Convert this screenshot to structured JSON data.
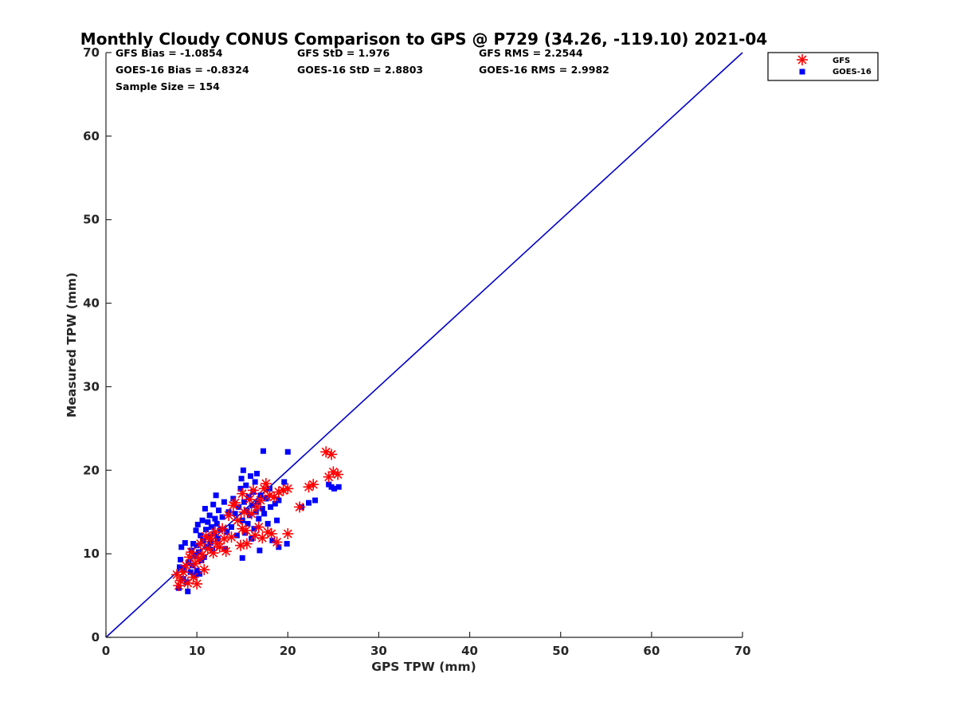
{
  "chart_data": {
    "type": "scatter",
    "title": "Monthly Cloudy CONUS Comparison to GPS @ P729 (34.26, -119.10) 2021-04",
    "xlabel": "GPS TPW (mm)",
    "ylabel": "Measured TPW (mm)",
    "xlim": [
      0,
      70
    ],
    "ylim": [
      0,
      70
    ],
    "xticks": [
      0,
      10,
      20,
      30,
      40,
      50,
      60,
      70
    ],
    "yticks": [
      0,
      10,
      20,
      30,
      40,
      50,
      60,
      70
    ],
    "grid": false,
    "legend_position": "outside-top-right",
    "stats": [
      [
        "GFS Bias = -1.0854",
        "GFS StD = 1.976",
        "GFS RMS = 2.2544"
      ],
      [
        "GOES-16 Bias = -0.8324",
        "GOES-16 StD = 2.8803",
        "GOES-16 RMS = 2.9982"
      ],
      [
        "Sample Size = 154"
      ]
    ],
    "reference_line": {
      "name": "1:1",
      "x": [
        0,
        70
      ],
      "y": [
        0,
        70
      ],
      "color": "#0000cc"
    },
    "series": [
      {
        "name": "GFS",
        "marker": "asterisk",
        "color": "#ff0000",
        "points": [
          [
            7.8,
            7.5
          ],
          [
            8.0,
            6.2
          ],
          [
            8.2,
            6.8
          ],
          [
            8.5,
            7.8
          ],
          [
            8.8,
            8.6
          ],
          [
            9.0,
            6.5
          ],
          [
            9.2,
            9.6
          ],
          [
            9.4,
            10.2
          ],
          [
            9.6,
            7.2
          ],
          [
            9.8,
            8.8
          ],
          [
            10.0,
            6.4
          ],
          [
            10.2,
            9.4
          ],
          [
            10.4,
            11.2
          ],
          [
            10.6,
            9.9
          ],
          [
            10.8,
            8.1
          ],
          [
            11.0,
            12.1
          ],
          [
            11.2,
            10.6
          ],
          [
            11.5,
            11.8
          ],
          [
            11.8,
            10.1
          ],
          [
            12.0,
            12.6
          ],
          [
            12.2,
            11.2
          ],
          [
            12.5,
            10.8
          ],
          [
            12.8,
            13.0
          ],
          [
            13.0,
            11.8
          ],
          [
            13.2,
            10.3
          ],
          [
            13.5,
            14.6
          ],
          [
            13.8,
            12.0
          ],
          [
            14.0,
            15.8
          ],
          [
            14.2,
            16.1
          ],
          [
            14.5,
            14.0
          ],
          [
            14.8,
            11.0
          ],
          [
            15.0,
            13.0
          ],
          [
            15.0,
            17.2
          ],
          [
            15.2,
            15.0
          ],
          [
            15.4,
            12.8
          ],
          [
            15.5,
            11.2
          ],
          [
            15.8,
            16.5
          ],
          [
            16.0,
            14.8
          ],
          [
            16.2,
            17.6
          ],
          [
            16.4,
            12.2
          ],
          [
            16.6,
            15.6
          ],
          [
            16.8,
            13.2
          ],
          [
            17.0,
            16.4
          ],
          [
            17.2,
            11.9
          ],
          [
            17.4,
            17.8
          ],
          [
            17.6,
            18.4
          ],
          [
            17.8,
            12.6
          ],
          [
            18.0,
            17.0
          ],
          [
            18.2,
            12.4
          ],
          [
            18.5,
            16.8
          ],
          [
            18.8,
            11.4
          ],
          [
            19.0,
            17.4
          ],
          [
            19.5,
            17.6
          ],
          [
            20.0,
            12.4
          ],
          [
            20.0,
            17.8
          ],
          [
            21.3,
            15.6
          ],
          [
            22.3,
            18.0
          ],
          [
            22.8,
            18.3
          ],
          [
            24.2,
            22.2
          ],
          [
            24.5,
            19.2
          ],
          [
            24.8,
            21.9
          ],
          [
            25.0,
            19.8
          ],
          [
            25.5,
            19.5
          ]
        ]
      },
      {
        "name": "GOES-16",
        "marker": "square",
        "color": "#0000ff",
        "points": [
          [
            8.0,
            5.9
          ],
          [
            8.1,
            8.4
          ],
          [
            8.2,
            9.3
          ],
          [
            8.3,
            10.8
          ],
          [
            8.5,
            7.0
          ],
          [
            8.6,
            8.2
          ],
          [
            8.7,
            11.3
          ],
          [
            8.9,
            6.6
          ],
          [
            9.0,
            5.5
          ],
          [
            9.1,
            9.0
          ],
          [
            9.3,
            7.8
          ],
          [
            9.4,
            10.4
          ],
          [
            9.5,
            8.6
          ],
          [
            9.6,
            11.2
          ],
          [
            9.7,
            7.4
          ],
          [
            9.8,
            9.8
          ],
          [
            9.9,
            12.8
          ],
          [
            10.0,
            8.0
          ],
          [
            10.0,
            11.0
          ],
          [
            10.1,
            13.5
          ],
          [
            10.2,
            10.2
          ],
          [
            10.3,
            7.6
          ],
          [
            10.4,
            12.2
          ],
          [
            10.5,
            9.2
          ],
          [
            10.6,
            14.0
          ],
          [
            10.7,
            11.6
          ],
          [
            10.8,
            9.6
          ],
          [
            10.9,
            15.4
          ],
          [
            11.0,
            12.9
          ],
          [
            11.1,
            10.8
          ],
          [
            11.2,
            13.8
          ],
          [
            11.3,
            12.0
          ],
          [
            11.4,
            14.6
          ],
          [
            11.5,
            11.3
          ],
          [
            11.6,
            13.2
          ],
          [
            11.7,
            10.5
          ],
          [
            11.8,
            15.9
          ],
          [
            11.9,
            12.4
          ],
          [
            12.0,
            14.2
          ],
          [
            12.1,
            17.0
          ],
          [
            12.2,
            13.6
          ],
          [
            12.3,
            11.8
          ],
          [
            12.4,
            15.2
          ],
          [
            12.6,
            12.9
          ],
          [
            12.8,
            14.4
          ],
          [
            13.0,
            16.2
          ],
          [
            13.1,
            10.6
          ],
          [
            13.3,
            12.6
          ],
          [
            13.5,
            15.0
          ],
          [
            13.8,
            13.2
          ],
          [
            14.0,
            16.6
          ],
          [
            14.2,
            14.8
          ],
          [
            14.4,
            12.2
          ],
          [
            14.6,
            15.6
          ],
          [
            14.8,
            17.8
          ],
          [
            14.9,
            19.0
          ],
          [
            15.0,
            9.5
          ],
          [
            15.0,
            14.0
          ],
          [
            15.1,
            20.0
          ],
          [
            15.2,
            16.2
          ],
          [
            15.3,
            12.5
          ],
          [
            15.4,
            18.2
          ],
          [
            15.5,
            15.2
          ],
          [
            15.6,
            13.6
          ],
          [
            15.7,
            16.8
          ],
          [
            15.8,
            14.6
          ],
          [
            15.9,
            19.3
          ],
          [
            16.0,
            11.8
          ],
          [
            16.1,
            15.8
          ],
          [
            16.2,
            17.4
          ],
          [
            16.3,
            13.0
          ],
          [
            16.4,
            18.6
          ],
          [
            16.5,
            15.0
          ],
          [
            16.6,
            19.6
          ],
          [
            16.7,
            16.2
          ],
          [
            16.8,
            14.2
          ],
          [
            16.9,
            10.4
          ],
          [
            17.0,
            17.0
          ],
          [
            17.2,
            15.4
          ],
          [
            17.3,
            22.3
          ],
          [
            17.4,
            14.8
          ],
          [
            17.6,
            16.6
          ],
          [
            17.8,
            13.6
          ],
          [
            18.0,
            17.8
          ],
          [
            18.1,
            15.6
          ],
          [
            18.3,
            11.6
          ],
          [
            18.6,
            16.0
          ],
          [
            18.8,
            14.0
          ],
          [
            19.0,
            10.8
          ],
          [
            19.0,
            16.4
          ],
          [
            19.6,
            18.6
          ],
          [
            19.9,
            11.2
          ],
          [
            20.0,
            22.2
          ],
          [
            21.5,
            15.6
          ],
          [
            22.3,
            16.1
          ],
          [
            23.0,
            16.4
          ],
          [
            24.5,
            18.3
          ],
          [
            24.8,
            18.0
          ],
          [
            25.1,
            17.8
          ],
          [
            25.6,
            18.0
          ]
        ]
      }
    ]
  }
}
